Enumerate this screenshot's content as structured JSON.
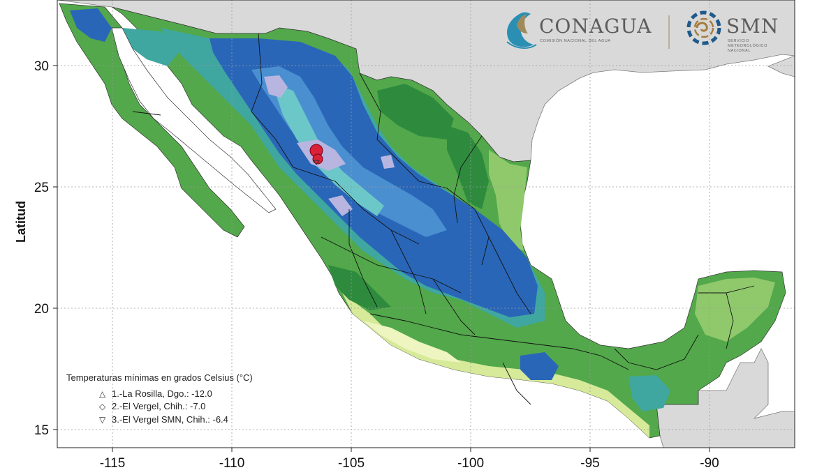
{
  "map": {
    "y_axis_title": "Latitud",
    "x_ticks": [
      "-115",
      "-110",
      "-105",
      "-100",
      "-95",
      "-90"
    ],
    "y_ticks": [
      "30",
      "25",
      "20",
      "15"
    ],
    "colors": {
      "ocean": "#ffffff",
      "land_outside": "#d9d9d9",
      "green_dark": "#2e8b3e",
      "green_mid": "#52a84a",
      "green_light": "#8fc96b",
      "yellow_green": "#d6ea9a",
      "pale_yellow": "#eef5c0",
      "teal": "#3fa7a0",
      "cyan": "#6cc7c8",
      "blue": "#2a66b8",
      "blue_light": "#4a8fd0",
      "lavender": "#b8b6e0",
      "highlight": "#d9213a"
    }
  },
  "legend": {
    "title": "Temperaturas mínimas en grados Celsius (°C)",
    "entries": [
      {
        "marker": "△",
        "text": "1.-La Rosilla, Dgo.: -12.0"
      },
      {
        "marker": "◇",
        "text": "2.-El Vergel, Chih.: -7.0"
      },
      {
        "marker": "▽",
        "text": "3.-El Vergel SMN, Chih.: -6.4"
      }
    ]
  },
  "logos": {
    "conagua_name": "CONAGUA",
    "conagua_subtitle": "COMISIÓN NACIONAL DEL AGUA",
    "smn_name": "SMN",
    "smn_subtitle_1": "SERVICIO",
    "smn_subtitle_2": "METEOROLÓGICO",
    "smn_subtitle_3": "NACIONAL"
  }
}
